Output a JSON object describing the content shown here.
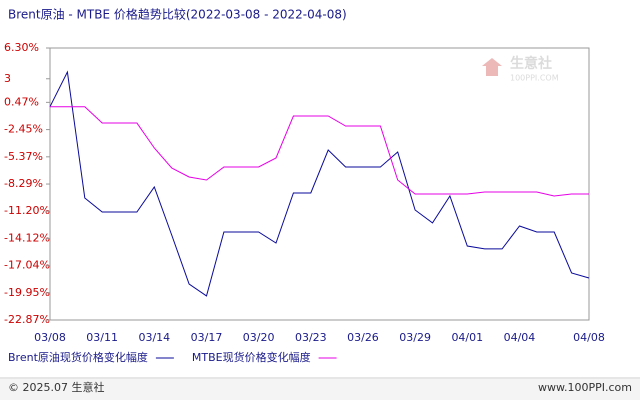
{
  "chart_data": {
    "type": "line",
    "title": "Brent原油 - MTBE 价格趋势比较(2022-03-08 - 2022-04-08)",
    "categories": [
      "03/08",
      null,
      null,
      "03/11",
      null,
      null,
      "03/14",
      null,
      null,
      "03/17",
      null,
      null,
      "03/20",
      null,
      null,
      "03/23",
      null,
      null,
      "03/26",
      null,
      null,
      "03/29",
      null,
      null,
      "04/01",
      null,
      null,
      "04/04",
      null,
      null,
      null,
      "04/08"
    ],
    "series": [
      {
        "name": "Brent原油现货价格变化幅度",
        "color": "#0a0a9a",
        "values": [
          0,
          3.73,
          -9.79,
          -11.29,
          -11.29,
          -11.29,
          -8.61,
          -13.75,
          -19.01,
          -20.29,
          -13.43,
          -13.43,
          -13.43,
          -14.61,
          -9.25,
          -9.25,
          -4.64,
          -6.46,
          -6.46,
          -6.46,
          -4.85,
          -11.07,
          -12.46,
          -9.57,
          -14.93,
          -15.25,
          -15.25,
          -12.79,
          -13.43,
          -13.43,
          -17.83,
          -18.37
        ]
      },
      {
        "name": "MTBE现货价格变化幅度",
        "color": "#e600e6",
        "values": [
          0,
          0,
          0,
          -1.74,
          -1.74,
          -1.74,
          -4.42,
          -6.57,
          -7.53,
          -7.86,
          -6.46,
          -6.46,
          -6.46,
          -5.5,
          -0.99,
          -0.99,
          -0.99,
          -2.06,
          -2.06,
          -2.06,
          -7.86,
          -9.36,
          -9.36,
          -9.36,
          -9.36,
          -9.14,
          -9.14,
          -9.14,
          -9.14,
          -9.57,
          -9.36,
          -9.36
        ]
      }
    ],
    "ylim": [
      -22.87,
      6.3
    ],
    "yticks": [
      {
        "value": 6.3,
        "label": "6.30%"
      },
      3,
      {
        "value": 0.47,
        "label": "0.47%"
      },
      {
        "value": -2.45,
        "label": "-2.45%"
      },
      {
        "value": -5.37,
        "label": "-5.37%"
      },
      {
        "value": -8.29,
        "label": "-8.29%"
      },
      {
        "value": -11.2,
        "label": "-11.20%"
      },
      {
        "value": -14.12,
        "label": "-14.12%"
      },
      {
        "value": -17.04,
        "label": "-17.04%"
      },
      {
        "value": -19.95,
        "label": "-19.95%"
      },
      {
        "value": -22.87,
        "label": "-22.87%"
      }
    ],
    "grid": false,
    "tick_label_color": "#cc0000"
  },
  "watermark": {
    "name": "生意社",
    "site": "100PPI.COM"
  },
  "footer": {
    "copyright": "© 2025.07 生意社",
    "site": "www.100PPI.com"
  }
}
